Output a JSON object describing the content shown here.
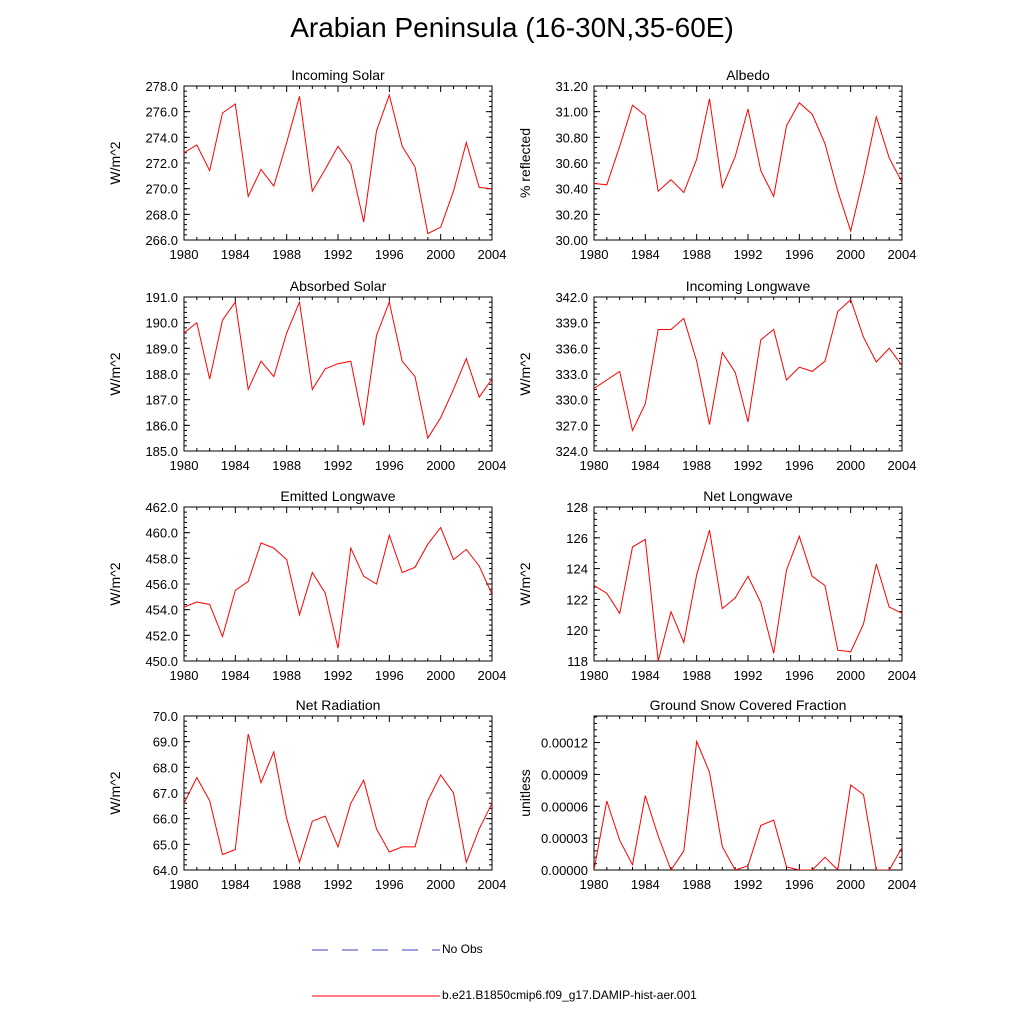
{
  "page": {
    "title": "Arabian Peninsula (16-30N,35-60E)"
  },
  "legend": {
    "entries": [
      {
        "label": "No Obs",
        "style": "dashed",
        "color": "#4040c0"
      },
      {
        "label": "b.e21.B1850cmip6.f09_g17.DAMIP-hist-aer.001",
        "style": "solid",
        "color": "#ff0000"
      }
    ]
  },
  "chart_data": [
    {
      "type": "line",
      "title": "Incoming Solar",
      "ylabel": "W/m^2",
      "xlim": [
        1980,
        2004
      ],
      "ylim": [
        266.0,
        278.0
      ],
      "xticks": [
        "1980",
        "1984",
        "1988",
        "1992",
        "1996",
        "2000",
        "2004"
      ],
      "yticks": [
        "266.0",
        "268.0",
        "270.0",
        "272.0",
        "274.0",
        "276.0",
        "278.0"
      ],
      "x": [
        1980,
        1981,
        1982,
        1983,
        1984,
        1985,
        1986,
        1987,
        1988,
        1989,
        1990,
        1991,
        1992,
        1993,
        1994,
        1995,
        1996,
        1997,
        1998,
        1999,
        2000,
        2001,
        2002,
        2003,
        2004
      ],
      "series": [
        {
          "name": "b.e21.B1850cmip6.f09_g17.DAMIP-hist-aer.001",
          "color": "#ff0000",
          "values": [
            272.8,
            273.4,
            271.4,
            275.9,
            276.6,
            269.4,
            271.5,
            270.2,
            273.6,
            277.2,
            269.8,
            271.5,
            273.3,
            271.9,
            267.4,
            274.5,
            277.3,
            273.3,
            271.7,
            266.5,
            267.0,
            269.8,
            273.6,
            270.1,
            270.0
          ]
        }
      ]
    },
    {
      "type": "line",
      "title": "Albedo",
      "ylabel": "% reflected",
      "xlim": [
        1980,
        2004
      ],
      "ylim": [
        30.0,
        31.2
      ],
      "xticks": [
        "1980",
        "1984",
        "1988",
        "1992",
        "1996",
        "2000",
        "2004"
      ],
      "yticks": [
        "30.00",
        "30.20",
        "30.40",
        "30.60",
        "30.80",
        "31.00",
        "31.20"
      ],
      "x": [
        1980,
        1981,
        1982,
        1983,
        1984,
        1985,
        1986,
        1987,
        1988,
        1989,
        1990,
        1991,
        1992,
        1993,
        1994,
        1995,
        1996,
        1997,
        1998,
        1999,
        2000,
        2001,
        2002,
        2003,
        2004
      ],
      "series": [
        {
          "name": "b.e21.B1850cmip6.f09_g17.DAMIP-hist-aer.001",
          "color": "#ff0000",
          "values": [
            30.44,
            30.43,
            30.73,
            31.05,
            30.97,
            30.38,
            30.47,
            30.37,
            30.63,
            31.1,
            30.41,
            30.65,
            31.02,
            30.54,
            30.34,
            30.89,
            31.07,
            30.98,
            30.75,
            30.38,
            30.07,
            30.49,
            30.96,
            30.64,
            30.45
          ]
        }
      ]
    },
    {
      "type": "line",
      "title": "Absorbed Solar",
      "ylabel": "W/m^2",
      "xlim": [
        1980,
        2004
      ],
      "ylim": [
        185.0,
        191.0
      ],
      "xticks": [
        "1980",
        "1984",
        "1988",
        "1992",
        "1996",
        "2000",
        "2004"
      ],
      "yticks": [
        "185.0",
        "186.0",
        "187.0",
        "188.0",
        "189.0",
        "190.0",
        "191.0"
      ],
      "x": [
        1980,
        1981,
        1982,
        1983,
        1984,
        1985,
        1986,
        1987,
        1988,
        1989,
        1990,
        1991,
        1992,
        1993,
        1994,
        1995,
        1996,
        1997,
        1998,
        1999,
        2000,
        2001,
        2002,
        2003,
        2004
      ],
      "series": [
        {
          "name": "b.e21.B1850cmip6.f09_g17.DAMIP-hist-aer.001",
          "color": "#ff0000",
          "values": [
            189.6,
            190.0,
            187.8,
            190.1,
            190.8,
            187.4,
            188.5,
            187.9,
            189.6,
            190.8,
            187.4,
            188.2,
            188.4,
            188.5,
            186.0,
            189.5,
            190.8,
            188.5,
            187.9,
            185.5,
            186.3,
            187.4,
            188.6,
            187.1,
            187.8
          ]
        }
      ]
    },
    {
      "type": "line",
      "title": "Incoming Longwave",
      "ylabel": "W/m^2",
      "xlim": [
        1980,
        2004
      ],
      "ylim": [
        324.0,
        342.0
      ],
      "xticks": [
        "1980",
        "1984",
        "1988",
        "1992",
        "1996",
        "2000",
        "2004"
      ],
      "yticks": [
        "324.0",
        "327.0",
        "330.0",
        "333.0",
        "336.0",
        "339.0",
        "342.0"
      ],
      "x": [
        1980,
        1981,
        1982,
        1983,
        1984,
        1985,
        1986,
        1987,
        1988,
        1989,
        1990,
        1991,
        1992,
        1993,
        1994,
        1995,
        1996,
        1997,
        1998,
        1999,
        2000,
        2001,
        2002,
        2003,
        2004
      ],
      "series": [
        {
          "name": "b.e21.B1850cmip6.f09_g17.DAMIP-hist-aer.001",
          "color": "#ff0000",
          "values": [
            331.3,
            332.3,
            333.3,
            326.4,
            329.5,
            338.2,
            338.2,
            339.5,
            334.5,
            327.1,
            335.5,
            333.2,
            327.4,
            337.0,
            338.2,
            332.3,
            333.8,
            333.3,
            334.5,
            340.3,
            341.7,
            337.3,
            334.4,
            336.0,
            334.0
          ]
        }
      ]
    },
    {
      "type": "line",
      "title": "Emitted Longwave",
      "ylabel": "W/m^2",
      "xlim": [
        1980,
        2004
      ],
      "ylim": [
        450.0,
        462.0
      ],
      "xticks": [
        "1980",
        "1984",
        "1988",
        "1992",
        "1996",
        "2000",
        "2004"
      ],
      "yticks": [
        "450.0",
        "452.0",
        "454.0",
        "456.0",
        "458.0",
        "460.0",
        "462.0"
      ],
      "x": [
        1980,
        1981,
        1982,
        1983,
        1984,
        1985,
        1986,
        1987,
        1988,
        1989,
        1990,
        1991,
        1992,
        1993,
        1994,
        1995,
        1996,
        1997,
        1998,
        1999,
        2000,
        2001,
        2002,
        2003,
        2004
      ],
      "series": [
        {
          "name": "b.e21.B1850cmip6.f09_g17.DAMIP-hist-aer.001",
          "color": "#ff0000",
          "values": [
            454.2,
            454.6,
            454.4,
            451.9,
            455.5,
            456.2,
            459.2,
            458.8,
            457.9,
            453.6,
            456.9,
            455.3,
            451.0,
            458.8,
            456.6,
            456.0,
            459.8,
            456.9,
            457.3,
            459.1,
            460.4,
            457.9,
            458.7,
            457.4,
            455.2
          ]
        }
      ]
    },
    {
      "type": "line",
      "title": "Net Longwave",
      "ylabel": "W/m^2",
      "xlim": [
        1980,
        2004
      ],
      "ylim": [
        118,
        128
      ],
      "xticks": [
        "1980",
        "1984",
        "1988",
        "1992",
        "1996",
        "2000",
        "2004"
      ],
      "yticks": [
        "118",
        "120",
        "122",
        "124",
        "126",
        "128"
      ],
      "x": [
        1980,
        1981,
        1982,
        1983,
        1984,
        1985,
        1986,
        1987,
        1988,
        1989,
        1990,
        1991,
        1992,
        1993,
        1994,
        1995,
        1996,
        1997,
        1998,
        1999,
        2000,
        2001,
        2002,
        2003,
        2004
      ],
      "series": [
        {
          "name": "b.e21.B1850cmip6.f09_g17.DAMIP-hist-aer.001",
          "color": "#ff0000",
          "values": [
            122.9,
            122.4,
            121.1,
            125.4,
            125.9,
            118.0,
            121.2,
            119.2,
            123.6,
            126.5,
            121.4,
            122.1,
            123.5,
            121.8,
            118.5,
            123.9,
            126.1,
            123.5,
            122.9,
            118.7,
            118.6,
            120.4,
            124.3,
            121.5,
            121.1
          ]
        }
      ]
    },
    {
      "type": "line",
      "title": "Net Radiation",
      "ylabel": "W/m^2",
      "xlim": [
        1980,
        2004
      ],
      "ylim": [
        64.0,
        70.0
      ],
      "xticks": [
        "1980",
        "1984",
        "1988",
        "1992",
        "1996",
        "2000",
        "2004"
      ],
      "yticks": [
        "64.0",
        "65.0",
        "66.0",
        "67.0",
        "68.0",
        "69.0",
        "70.0"
      ],
      "x": [
        1980,
        1981,
        1982,
        1983,
        1984,
        1985,
        1986,
        1987,
        1988,
        1989,
        1990,
        1991,
        1992,
        1993,
        1994,
        1995,
        1996,
        1997,
        1998,
        1999,
        2000,
        2001,
        2002,
        2003,
        2004
      ],
      "series": [
        {
          "name": "b.e21.B1850cmip6.f09_g17.DAMIP-hist-aer.001",
          "color": "#ff0000",
          "values": [
            66.6,
            67.6,
            66.7,
            64.6,
            64.8,
            69.3,
            67.4,
            68.6,
            66.0,
            64.3,
            65.9,
            66.1,
            64.9,
            66.6,
            67.5,
            65.6,
            64.7,
            64.9,
            64.9,
            66.7,
            67.7,
            67.0,
            64.3,
            65.6,
            66.6
          ]
        }
      ]
    },
    {
      "type": "line",
      "title": "Ground Snow Covered Fraction",
      "ylabel": "unitless",
      "xlim": [
        1980,
        2004
      ],
      "ylim": [
        0,
        0.000145
      ],
      "xticks": [
        "1980",
        "1984",
        "1988",
        "1992",
        "1996",
        "2000",
        "2004"
      ],
      "yticks": [
        "0.00000",
        "0.00003",
        "0.00006",
        "0.00009",
        "0.00012"
      ],
      "ytick_values": [
        0,
        3e-05,
        6e-05,
        9e-05,
        0.00012
      ],
      "x": [
        1980,
        1981,
        1982,
        1983,
        1984,
        1985,
        1986,
        1987,
        1988,
        1989,
        1990,
        1991,
        1992,
        1993,
        1994,
        1995,
        1996,
        1997,
        1998,
        1999,
        2000,
        2001,
        2002,
        2003,
        2004
      ],
      "series": [
        {
          "name": "b.e21.B1850cmip6.f09_g17.DAMIP-hist-aer.001",
          "color": "#ff0000",
          "values": [
            0.0,
            6.5e-05,
            2.8e-05,
            5e-06,
            7e-05,
            3.2e-05,
            0.0,
            1.8e-05,
            0.000121,
            9.2e-05,
            2.2e-05,
            0.0,
            4e-06,
            4.2e-05,
            4.7e-05,
            3e-06,
            0.0,
            0.0,
            1.2e-05,
            0.0,
            8e-05,
            7.1e-05,
            0.0,
            0.0,
            2.1e-05
          ]
        }
      ]
    }
  ]
}
